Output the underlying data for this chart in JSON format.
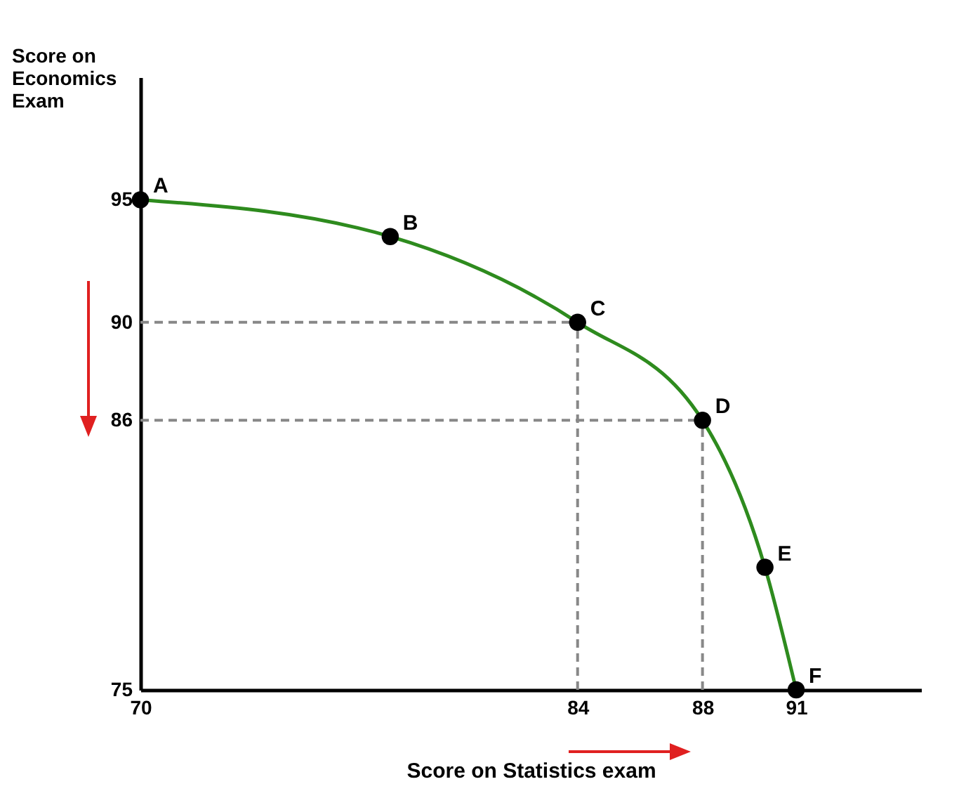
{
  "chart_data": {
    "type": "line",
    "xlabel": "Score on Statistics exam",
    "ylabel": "Score on Economics Exam",
    "xlim": [
      70,
      95
    ],
    "ylim": [
      75,
      100
    ],
    "xticks": [
      70,
      84,
      88,
      91
    ],
    "yticks": [
      75,
      86,
      90,
      95
    ],
    "series": [
      {
        "color": "#2e8b1e",
        "x": [
          70,
          78,
          84,
          88,
          90,
          91
        ],
        "values": [
          95,
          93.5,
          90,
          86,
          80,
          75
        ]
      }
    ],
    "marker": "circle",
    "grid": false,
    "ref_lines": [
      {
        "axis": "x",
        "value": 84,
        "color": "#888888",
        "line_style": "dashed"
      },
      {
        "axis": "x",
        "value": 88,
        "color": "#888888",
        "line_style": "dashed"
      },
      {
        "axis": "y",
        "value": 90,
        "color": "#888888",
        "line_style": "dashed"
      },
      {
        "axis": "y",
        "value": 86,
        "color": "#888888",
        "line_style": "dashed"
      }
    ],
    "annotations": [
      {
        "text": "A",
        "x": 70,
        "y": 95
      },
      {
        "text": "B",
        "x": 78,
        "y": 93.5
      },
      {
        "text": "C",
        "x": 84,
        "y": 90
      },
      {
        "text": "D",
        "x": 88,
        "y": 86
      },
      {
        "text": "E",
        "x": 90,
        "y": 80
      },
      {
        "text": "F",
        "x": 91,
        "y": 75
      }
    ]
  }
}
